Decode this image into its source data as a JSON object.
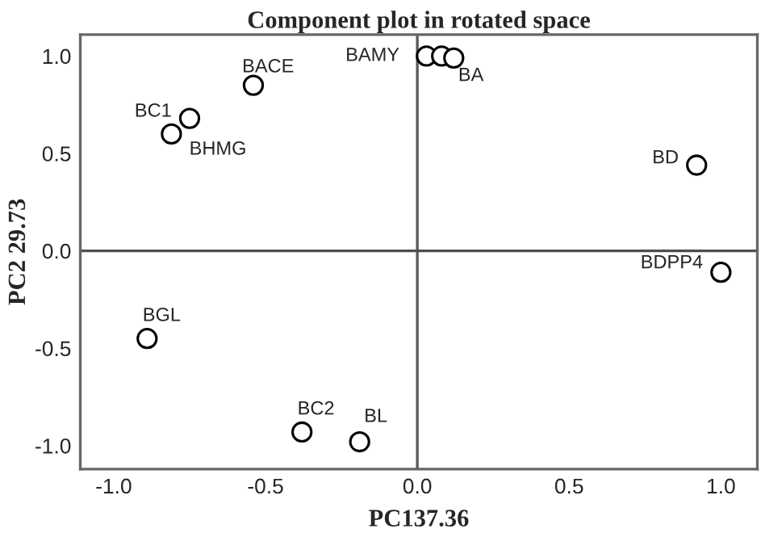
{
  "chart_data": {
    "type": "scatter",
    "title": "Component plot in rotated space",
    "xlabel": "PC137.36",
    "ylabel": "PC2 29.73",
    "series": [
      {
        "color": "#000000",
        "x": [
          0.03,
          0.08,
          0.12,
          -0.54,
          -0.75,
          -0.81,
          0.92,
          1.0,
          -0.89,
          -0.38,
          -0.19
        ],
        "values": [
          1.0,
          1.0,
          0.99,
          0.85,
          0.68,
          0.6,
          0.44,
          -0.11,
          -0.45,
          -0.93,
          -0.98
        ]
      }
    ],
    "marker": "circle",
    "xlim": [
      -1.11,
      1.12
    ],
    "ylim": [
      -1.12,
      1.11
    ],
    "xticks": [
      {
        "value": -1.0,
        "label": "-1.0"
      },
      {
        "value": -0.5,
        "label": "-0.5"
      },
      {
        "value": 0.0,
        "label": "0.0"
      },
      {
        "value": 0.5,
        "label": "0.5"
      },
      {
        "value": 1.0,
        "label": "1.0"
      }
    ],
    "yticks": [
      {
        "value": -1.0,
        "label": "-1.0"
      },
      {
        "value": -0.5,
        "label": "-0.5"
      },
      {
        "value": 0.0,
        "label": "0.0"
      },
      {
        "value": 0.5,
        "label": "0.5"
      },
      {
        "value": 1.0,
        "label": "1.0"
      }
    ],
    "ref_lines": [
      {
        "axis": "x",
        "value": 0,
        "color": "#5a5a5a"
      },
      {
        "axis": "y",
        "value": 0,
        "color": "#4d4d4d"
      }
    ],
    "grid": false,
    "legend": false,
    "annotations": [
      {
        "text": "BAMY",
        "x": 0.03,
        "y": 1.0
      },
      {
        "text": "BA",
        "x": 0.12,
        "y": 0.99
      },
      {
        "text": "BACE",
        "x": -0.54,
        "y": 0.85
      },
      {
        "text": "BC1",
        "x": -0.75,
        "y": 0.68
      },
      {
        "text": "BHMG",
        "x": -0.81,
        "y": 0.6
      },
      {
        "text": "BD",
        "x": 0.92,
        "y": 0.44
      },
      {
        "text": "BDPP4",
        "x": 1.0,
        "y": -0.11
      },
      {
        "text": "BGL",
        "x": -0.89,
        "y": -0.45
      },
      {
        "text": "BC2",
        "x": -0.38,
        "y": -0.93
      },
      {
        "text": "BL",
        "x": -0.19,
        "y": -0.98
      }
    ]
  }
}
